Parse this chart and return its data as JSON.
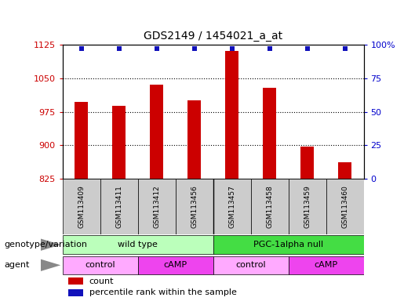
{
  "title": "GDS2149 / 1454021_a_at",
  "samples": [
    "GSM113409",
    "GSM113411",
    "GSM113412",
    "GSM113456",
    "GSM113457",
    "GSM113458",
    "GSM113459",
    "GSM113460"
  ],
  "counts": [
    998,
    988,
    1035,
    1000,
    1112,
    1028,
    897,
    862
  ],
  "percentile_ranks": [
    97,
    97,
    97,
    97,
    97,
    97,
    97,
    97
  ],
  "ylim_left": [
    825,
    1125
  ],
  "ylim_right": [
    0,
    100
  ],
  "yticks_left": [
    825,
    900,
    975,
    1050,
    1125
  ],
  "yticks_right": [
    0,
    25,
    50,
    75,
    100
  ],
  "bar_color": "#cc0000",
  "dot_color": "#1111bb",
  "bar_base": 825,
  "genotype_groups": [
    {
      "label": "wild type",
      "start": 0,
      "end": 4,
      "color": "#bbffbb"
    },
    {
      "label": "PGC-1alpha null",
      "start": 4,
      "end": 8,
      "color": "#44dd44"
    }
  ],
  "agent_groups": [
    {
      "label": "control",
      "start": 0,
      "end": 2,
      "color": "#ffaaff"
    },
    {
      "label": "cAMP",
      "start": 2,
      "end": 4,
      "color": "#ee44ee"
    },
    {
      "label": "control",
      "start": 4,
      "end": 6,
      "color": "#ffaaff"
    },
    {
      "label": "cAMP",
      "start": 6,
      "end": 8,
      "color": "#ee44ee"
    }
  ],
  "label_genotype": "genotype/variation",
  "label_agent": "agent",
  "tick_label_color_left": "#cc0000",
  "tick_label_color_right": "#0000cc",
  "sample_box_color": "#cccccc",
  "arrow_color": "#888888"
}
